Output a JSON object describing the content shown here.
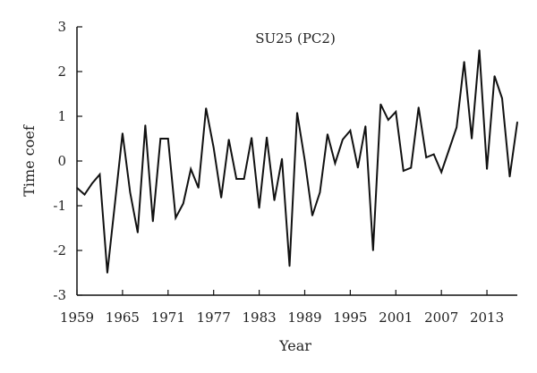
{
  "chart_data": {
    "type": "line",
    "title": "SU25 (PC2)",
    "xlabel": "Year",
    "ylabel": "Time coef",
    "xlim": [
      1959,
      2017
    ],
    "ylim": [
      -3,
      3
    ],
    "xticks": [
      1959,
      1965,
      1971,
      1977,
      1983,
      1989,
      1995,
      2001,
      2007,
      2013
    ],
    "yticks": [
      -3,
      -2,
      -1,
      0,
      1,
      2,
      3
    ],
    "grid": false,
    "legend": "none",
    "line_color": "#111111",
    "x": [
      1959,
      1960,
      1961,
      1962,
      1963,
      1964,
      1965,
      1966,
      1967,
      1968,
      1969,
      1970,
      1971,
      1972,
      1973,
      1974,
      1975,
      1976,
      1977,
      1978,
      1979,
      1980,
      1981,
      1982,
      1983,
      1984,
      1985,
      1986,
      1987,
      1988,
      1989,
      1990,
      1991,
      1992,
      1993,
      1994,
      1995,
      1996,
      1997,
      1998,
      1999,
      2000,
      2001,
      2002,
      2003,
      2004,
      2005,
      2006,
      2007,
      2008,
      2009,
      2010,
      2011,
      2012,
      2013,
      2014,
      2015,
      2016,
      2017
    ],
    "y": [
      -0.6,
      -0.75,
      -0.5,
      -0.3,
      -2.5,
      -0.95,
      0.62,
      -0.7,
      -1.6,
      0.8,
      -1.35,
      0.5,
      0.5,
      -1.27,
      -0.95,
      -0.18,
      -0.6,
      1.18,
      0.3,
      -0.82,
      0.48,
      -0.4,
      -0.4,
      0.52,
      -1.05,
      0.53,
      -0.88,
      0.05,
      -2.35,
      1.08,
      0.02,
      -1.22,
      -0.7,
      0.6,
      -0.05,
      0.48,
      0.68,
      -0.15,
      0.78,
      -2.0,
      1.27,
      0.92,
      1.1,
      -0.22,
      -0.15,
      1.2,
      0.08,
      0.15,
      -0.25,
      0.25,
      0.75,
      2.22,
      0.5,
      2.48,
      -0.18,
      1.9,
      1.4,
      -0.35,
      0.87
    ]
  }
}
